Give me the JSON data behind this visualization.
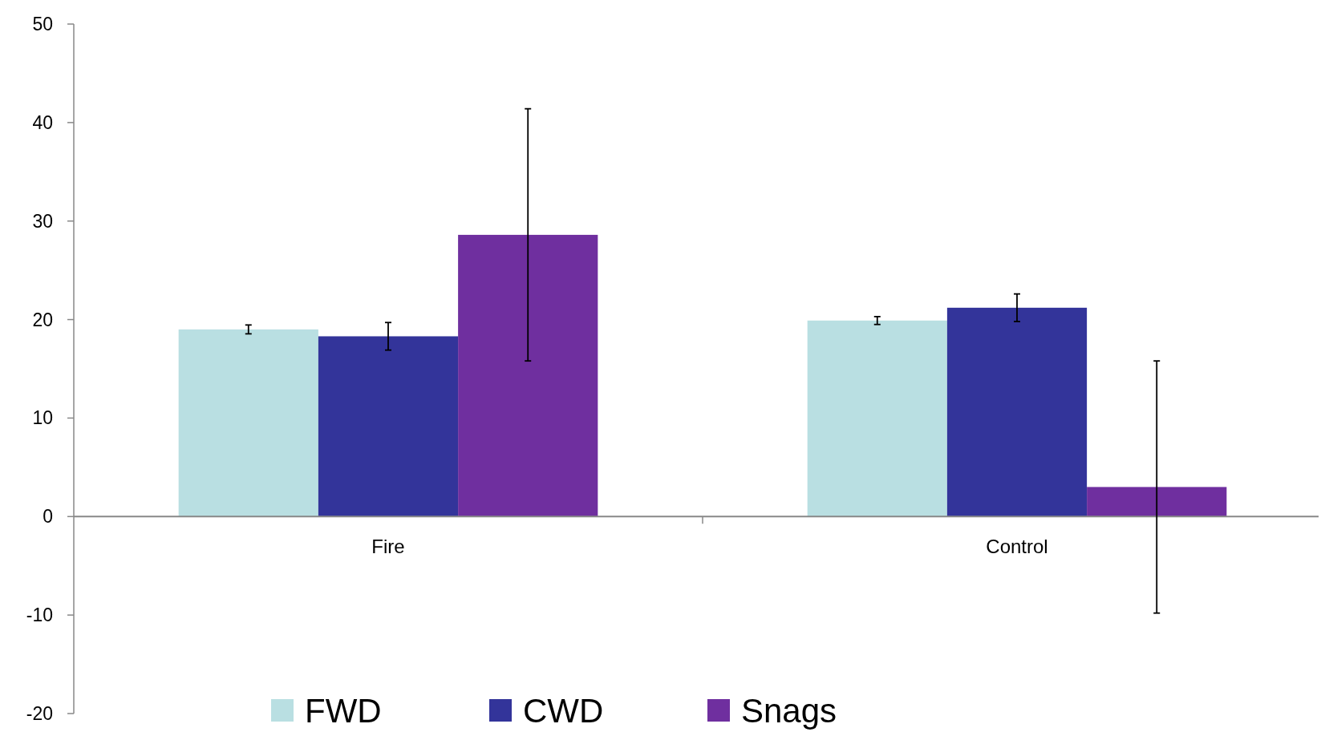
{
  "chart_data": {
    "type": "bar",
    "categories": [
      "Fire",
      "Control"
    ],
    "series": [
      {
        "name": "FWD",
        "color": "#b9dfe2",
        "values": [
          19.0,
          19.9
        ],
        "errors": [
          0.45,
          0.4
        ]
      },
      {
        "name": "CWD",
        "color": "#33349a",
        "values": [
          18.3,
          21.2
        ],
        "errors": [
          1.4,
          1.4
        ]
      },
      {
        "name": "Snags",
        "color": "#6f2f9f",
        "values": [
          28.6,
          3.0
        ],
        "errors": [
          12.8,
          12.8
        ]
      }
    ],
    "ylim": [
      -20,
      50
    ],
    "yticks": [
      -20,
      -10,
      0,
      10,
      20,
      30,
      40,
      50
    ],
    "grid": false,
    "legend": "bottom"
  }
}
